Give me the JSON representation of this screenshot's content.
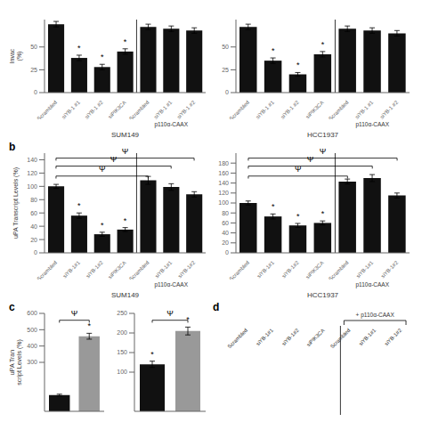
{
  "chart_data": [
    {
      "type": "bar",
      "xlabel": "SUM149",
      "ylabel": "Invac\n(%)",
      "categories": [
        "Scrambled",
        "siYB-1 #1",
        "siYB-1 #2",
        "siPIK3CA",
        "Scrambled",
        "siYB-1 #1",
        "siYB-1 #2"
      ],
      "values": [
        75,
        38,
        28,
        45,
        72,
        70,
        68
      ],
      "errors": [
        3,
        3,
        3,
        3,
        3,
        3,
        3
      ],
      "color": "#111111",
      "ylim": [
        0,
        80
      ],
      "yticks": [
        0,
        25,
        50
      ],
      "annotations": [
        {
          "text": "*",
          "index": 1
        },
        {
          "text": "*",
          "index": 2
        },
        {
          "text": "*",
          "index": 3
        }
      ],
      "group_label": {
        "text": "p110α-CAAX",
        "from": 4,
        "to": 6
      }
    },
    {
      "type": "bar",
      "xlabel": "HCC1937",
      "categories": [
        "Scrambled",
        "siYB-1 #1",
        "siYB-1 #2",
        "siPIK3CA",
        "Scrambled",
        "siYB-1 #1",
        "siYB-1 #2"
      ],
      "values": [
        72,
        35,
        20,
        42,
        70,
        68,
        65
      ],
      "errors": [
        3,
        3,
        2,
        3,
        3,
        3,
        3
      ],
      "color": "#111111",
      "ylim": [
        0,
        80
      ],
      "yticks": [
        0,
        25,
        50
      ],
      "annotations": [
        {
          "text": "*",
          "index": 1
        },
        {
          "text": "*",
          "index": 2
        },
        {
          "text": "*",
          "index": 3
        }
      ],
      "group_label": {
        "text": "p110α-CAAX",
        "from": 4,
        "to": 6
      }
    },
    {
      "type": "bar",
      "panel": "b",
      "xlabel": "SUM149",
      "ylabel": "uPA Transcript Levels (%)",
      "categories": [
        "Scrambled",
        "siYB-1#1",
        "siYB-1#2",
        "siPIK3CA",
        "Scrambled",
        "siYB-1#1",
        "siYB-1#2"
      ],
      "values": [
        100,
        56,
        28,
        35,
        109,
        99,
        88
      ],
      "errors": [
        3,
        4,
        3,
        3,
        6,
        5,
        4
      ],
      "color": "#111111",
      "ylim": [
        0,
        150
      ],
      "yticks": [
        0,
        20,
        40,
        60,
        80,
        100,
        120,
        140
      ],
      "annotations": [
        {
          "text": "*",
          "index": 1
        },
        {
          "text": "*",
          "index": 2
        },
        {
          "text": "*",
          "index": 3
        },
        {
          "text": "Ψ",
          "from": 0,
          "to": 4
        },
        {
          "text": "Ψ",
          "from": 0,
          "to": 5
        },
        {
          "text": "Ψ",
          "from": 0,
          "to": 6
        }
      ],
      "group_label": {
        "text": "p110α-CAAX",
        "from": 4,
        "to": 6
      }
    },
    {
      "type": "bar",
      "xlabel": "HCC1937",
      "categories": [
        "Scrambled",
        "siYB-1#1",
        "siYB-1#2",
        "siPIK3CA",
        "Scrambled",
        "siYB-1#1",
        "siYB-1#2"
      ],
      "values": [
        100,
        73,
        55,
        60,
        143,
        150,
        115
      ],
      "errors": [
        4,
        5,
        4,
        4,
        5,
        7,
        5
      ],
      "color": "#111111",
      "ylim": [
        0,
        200
      ],
      "yticks": [
        0,
        20,
        40,
        60,
        80,
        100,
        120,
        140,
        160,
        180
      ],
      "annotations": [
        {
          "text": "*",
          "index": 1
        },
        {
          "text": "*",
          "index": 2
        },
        {
          "text": "*",
          "index": 3
        },
        {
          "text": "Ψ",
          "from": 0,
          "to": 4
        },
        {
          "text": "Ψ",
          "from": 0,
          "to": 5
        },
        {
          "text": "Ψ",
          "from": 0,
          "to": 6
        }
      ],
      "group_label": {
        "text": "p110α-CAAX",
        "from": 4,
        "to": 6
      }
    },
    {
      "type": "bar",
      "panel": "c",
      "ylabel": "uPA Tran\nscript Levels (%)",
      "values": [
        100,
        460
      ],
      "errors": [
        5,
        18
      ],
      "colors": [
        "#111111",
        "#999999"
      ],
      "ylim": [
        0,
        600
      ],
      "yticks": [
        300,
        400,
        500,
        600
      ],
      "annotations": [
        {
          "text": "*",
          "index": 1
        },
        {
          "text": "Ψ",
          "from": 0,
          "to": 1
        }
      ]
    },
    {
      "type": "bar",
      "values": [
        120,
        205
      ],
      "errors": [
        8,
        10
      ],
      "colors": [
        "#111111",
        "#999999"
      ],
      "ylim": [
        0,
        250
      ],
      "yticks": [
        100,
        150,
        200,
        250
      ],
      "annotations": [
        {
          "text": "*",
          "index": 1
        },
        {
          "text": "*",
          "index": 0
        },
        {
          "text": "Ψ",
          "from": 0,
          "to": 1
        }
      ]
    },
    {
      "type": "text",
      "panel": "d",
      "categories": [
        "Scrambled",
        "siYB-1#1",
        "siYB-1#2",
        "siPIK3CA",
        "Scrambled",
        "siYB-1#1",
        "siYB-1#2"
      ],
      "group_label": {
        "text": "+ p110α-CAAX",
        "from": 4,
        "to": 6
      }
    }
  ]
}
